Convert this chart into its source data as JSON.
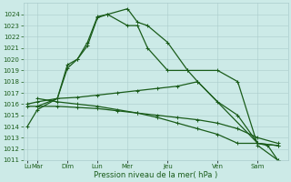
{
  "xlabel": "Pression niveau de la mer( hPa )",
  "bg_color": "#cceae7",
  "grid_color": "#aacccc",
  "line_color": "#1a5c1a",
  "ylim": [
    1011,
    1025
  ],
  "yticks": [
    1011,
    1012,
    1013,
    1014,
    1015,
    1016,
    1017,
    1018,
    1019,
    1020,
    1021,
    1022,
    1023,
    1024
  ],
  "series": [
    {
      "x": [
        0.0,
        0.5,
        1.5,
        2.0,
        2.5,
        3.0,
        3.5,
        4.0,
        5.0,
        5.5,
        6.0,
        7.0,
        8.0,
        9.5,
        10.5,
        11.5,
        12.5
      ],
      "y": [
        1014.0,
        1015.5,
        1016.5,
        1019.5,
        1020.0,
        1021.5,
        1023.8,
        1024.0,
        1024.5,
        1023.3,
        1023.0,
        1021.5,
        1019.0,
        1019.0,
        1018.0,
        1012.3,
        1011.0
      ],
      "marker": "+",
      "markersize": 3,
      "linewidth": 0.9
    },
    {
      "x": [
        0.5,
        1.5,
        2.0,
        2.5,
        3.0,
        3.5,
        4.0,
        5.0,
        5.5,
        6.0,
        7.0,
        8.0,
        8.5,
        11.5,
        12.5
      ],
      "y": [
        1015.8,
        1016.5,
        1019.2,
        1020.0,
        1021.2,
        1023.7,
        1024.0,
        1023.0,
        1023.0,
        1021.0,
        1019.0,
        1019.0,
        1018.0,
        1012.5,
        1012.3
      ],
      "marker": "+",
      "markersize": 3,
      "linewidth": 0.9
    },
    {
      "x": [
        0.0,
        0.5,
        1.5,
        2.5,
        3.5,
        4.5,
        5.5,
        6.5,
        7.5,
        8.5,
        9.5,
        10.5,
        11.5,
        12.5
      ],
      "y": [
        1016.0,
        1016.2,
        1016.5,
        1016.6,
        1016.8,
        1017.0,
        1017.2,
        1017.4,
        1017.6,
        1018.0,
        1016.2,
        1015.0,
        1012.5,
        1012.3
      ],
      "marker": "+",
      "markersize": 3,
      "linewidth": 0.9
    },
    {
      "x": [
        0.0,
        0.5,
        1.5,
        2.5,
        3.5,
        4.5,
        5.5,
        6.5,
        7.5,
        8.5,
        9.5,
        10.5,
        11.5,
        12.5
      ],
      "y": [
        1015.8,
        1015.8,
        1015.8,
        1015.7,
        1015.6,
        1015.4,
        1015.2,
        1015.0,
        1014.8,
        1014.6,
        1014.3,
        1013.8,
        1013.0,
        1012.5
      ],
      "marker": "+",
      "markersize": 3,
      "linewidth": 0.9
    },
    {
      "x": [
        0.5,
        1.5,
        2.5,
        3.5,
        4.5,
        5.5,
        6.5,
        7.5,
        8.5,
        9.5,
        10.5,
        11.5,
        12.0,
        12.5
      ],
      "y": [
        1016.5,
        1016.2,
        1016.0,
        1015.8,
        1015.5,
        1015.2,
        1014.8,
        1014.3,
        1013.8,
        1013.3,
        1012.5,
        1012.5,
        1012.3,
        1011.0
      ],
      "marker": "+",
      "markersize": 3,
      "linewidth": 0.9
    }
  ],
  "major_xtick_positions": [
    0.0,
    0.5,
    2.0,
    3.5,
    5.0,
    7.0,
    9.5,
    11.5
  ],
  "major_xtick_labels": [
    "Lu",
    "Mar",
    "Dim",
    "Lun",
    "Mer",
    "Jeu",
    "Ven",
    "Sam"
  ],
  "xlim": [
    -0.2,
    13.0
  ]
}
